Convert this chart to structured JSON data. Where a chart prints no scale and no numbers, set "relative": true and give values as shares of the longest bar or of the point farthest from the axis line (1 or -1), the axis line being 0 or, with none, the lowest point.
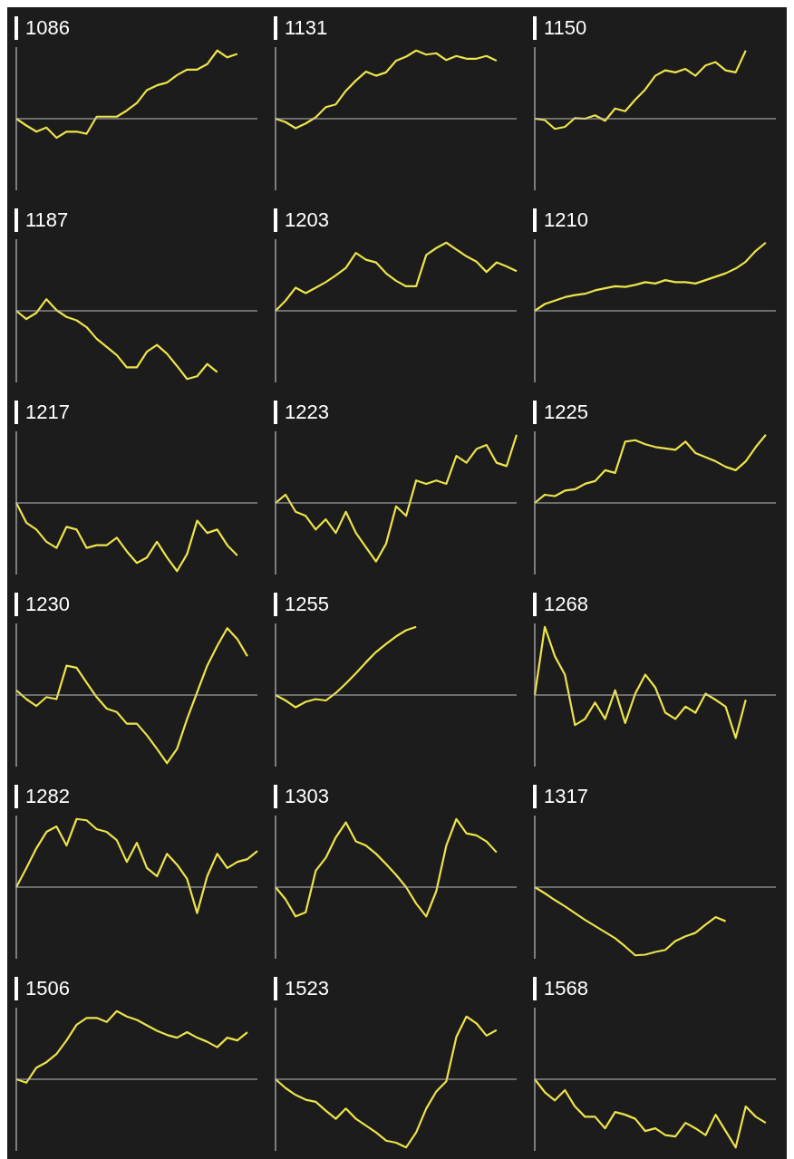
{
  "chart_data": [
    {
      "type": "line",
      "title": "1086",
      "relative": true,
      "categories": [
        null,
        null,
        null,
        null,
        null,
        null,
        null,
        null,
        null,
        null,
        null,
        null,
        null,
        null,
        null,
        null,
        null,
        null,
        null,
        null,
        null,
        null,
        null,
        null,
        null
      ],
      "series": [
        {
          "color": "#ede34b",
          "values": [
            0,
            -0.1,
            -0.19,
            -0.13,
            -0.28,
            -0.19,
            -0.19,
            -0.22,
            0.03,
            0.03,
            0.03,
            0.12,
            0.23,
            0.42,
            0.49,
            0.53,
            0.64,
            0.72,
            0.72,
            0.8,
            1,
            0.9,
            0.95,
            null,
            null
          ]
        }
      ]
    },
    {
      "type": "line",
      "title": "1131",
      "relative": true,
      "categories": [
        null,
        null,
        null,
        null,
        null,
        null,
        null,
        null,
        null,
        null,
        null,
        null,
        null,
        null,
        null,
        null,
        null,
        null,
        null,
        null,
        null,
        null,
        null,
        null,
        null
      ],
      "series": [
        {
          "color": "#ede34b",
          "values": [
            0,
            -0.05,
            -0.14,
            -0.07,
            0.02,
            0.17,
            0.21,
            0.41,
            0.56,
            0.69,
            0.63,
            0.68,
            0.85,
            0.91,
            1,
            0.94,
            0.96,
            0.86,
            0.92,
            0.88,
            0.88,
            0.92,
            0.85,
            null,
            null
          ]
        }
      ]
    },
    {
      "type": "line",
      "title": "1150",
      "relative": true,
      "categories": [
        null,
        null,
        null,
        null,
        null,
        null,
        null,
        null,
        null,
        null,
        null,
        null,
        null,
        null,
        null,
        null,
        null,
        null,
        null,
        null,
        null,
        null,
        null,
        null,
        null
      ],
      "series": [
        {
          "color": "#ede34b",
          "values": [
            0,
            -0.02,
            -0.15,
            -0.12,
            0.01,
            0,
            0.05,
            -0.03,
            0.15,
            0.11,
            0.28,
            0.43,
            0.63,
            0.71,
            0.68,
            0.73,
            0.63,
            0.78,
            0.83,
            0.71,
            0.68,
            1,
            null,
            null,
            null
          ]
        }
      ]
    },
    {
      "type": "line",
      "title": "1187",
      "relative": true,
      "categories": [
        null,
        null,
        null,
        null,
        null,
        null,
        null,
        null,
        null,
        null,
        null,
        null,
        null,
        null,
        null,
        null,
        null,
        null,
        null,
        null,
        null,
        null,
        null,
        null,
        null
      ],
      "series": [
        {
          "color": "#ede34b",
          "values": [
            0,
            -0.12,
            -0.03,
            0.17,
            0.01,
            -0.09,
            -0.14,
            -0.24,
            -0.41,
            -0.53,
            -0.65,
            -0.83,
            -0.83,
            -0.6,
            -0.5,
            -0.63,
            -0.81,
            -1,
            -0.96,
            -0.78,
            -0.9,
            null,
            null,
            null,
            null
          ]
        }
      ]
    },
    {
      "type": "line",
      "title": "1203",
      "relative": true,
      "categories": [
        null,
        null,
        null,
        null,
        null,
        null,
        null,
        null,
        null,
        null,
        null,
        null,
        null,
        null,
        null,
        null,
        null,
        null,
        null,
        null,
        null,
        null,
        null,
        null,
        null
      ],
      "series": [
        {
          "color": "#ede34b",
          "values": [
            0,
            0.15,
            0.34,
            0.26,
            0.34,
            0.42,
            0.52,
            0.63,
            0.85,
            0.75,
            0.71,
            0.55,
            0.44,
            0.36,
            0.36,
            0.82,
            0.92,
            1,
            0.9,
            0.8,
            0.72,
            0.57,
            0.71,
            0.65,
            0.58
          ]
        }
      ]
    },
    {
      "type": "line",
      "title": "1210",
      "relative": true,
      "categories": [
        null,
        null,
        null,
        null,
        null,
        null,
        null,
        null,
        null,
        null,
        null,
        null,
        null,
        null,
        null,
        null,
        null,
        null,
        null,
        null,
        null,
        null,
        null,
        null,
        null
      ],
      "series": [
        {
          "color": "#ede34b",
          "values": [
            0,
            0.1,
            0.15,
            0.2,
            0.23,
            0.25,
            0.3,
            0.33,
            0.36,
            0.35,
            0.38,
            0.42,
            0.4,
            0.45,
            0.42,
            0.42,
            0.4,
            0.45,
            0.5,
            0.55,
            0.62,
            0.72,
            0.88,
            1,
            null
          ]
        }
      ]
    },
    {
      "type": "line",
      "title": "1217",
      "relative": true,
      "categories": [
        null,
        null,
        null,
        null,
        null,
        null,
        null,
        null,
        null,
        null,
        null,
        null,
        null,
        null,
        null,
        null,
        null,
        null,
        null,
        null,
        null,
        null,
        null,
        null,
        null
      ],
      "series": [
        {
          "color": "#ede34b",
          "values": [
            0,
            -0.29,
            -0.39,
            -0.57,
            -0.66,
            -0.35,
            -0.39,
            -0.66,
            -0.62,
            -0.62,
            -0.51,
            -0.71,
            -0.88,
            -0.8,
            -0.57,
            -0.8,
            -1,
            -0.75,
            -0.26,
            -0.44,
            -0.39,
            -0.62,
            -0.77,
            null,
            null
          ]
        }
      ]
    },
    {
      "type": "line",
      "title": "1223",
      "relative": true,
      "categories": [
        null,
        null,
        null,
        null,
        null,
        null,
        null,
        null,
        null,
        null,
        null,
        null,
        null,
        null,
        null,
        null,
        null,
        null,
        null,
        null,
        null,
        null,
        null,
        null,
        null
      ],
      "series": [
        {
          "color": "#ede34b",
          "values": [
            0,
            0.12,
            -0.13,
            -0.19,
            -0.39,
            -0.24,
            -0.44,
            -0.13,
            -0.44,
            -0.65,
            -0.86,
            -0.6,
            -0.05,
            -0.19,
            0.33,
            0.28,
            0.33,
            0.28,
            0.69,
            0.59,
            0.79,
            0.85,
            0.59,
            0.54,
            1
          ]
        }
      ]
    },
    {
      "type": "line",
      "title": "1225",
      "relative": true,
      "categories": [
        null,
        null,
        null,
        null,
        null,
        null,
        null,
        null,
        null,
        null,
        null,
        null,
        null,
        null,
        null,
        null,
        null,
        null,
        null,
        null,
        null,
        null,
        null,
        null,
        null
      ],
      "series": [
        {
          "color": "#ede34b",
          "values": [
            0,
            0.12,
            0.1,
            0.18,
            0.2,
            0.28,
            0.32,
            0.48,
            0.44,
            0.9,
            0.92,
            0.86,
            0.82,
            0.8,
            0.78,
            0.9,
            0.73,
            0.67,
            0.61,
            0.53,
            0.48,
            0.61,
            0.82,
            1,
            null
          ]
        }
      ]
    },
    {
      "type": "line",
      "title": "1230",
      "relative": true,
      "categories": [
        null,
        null,
        null,
        null,
        null,
        null,
        null,
        null,
        null,
        null,
        null,
        null,
        null,
        null,
        null,
        null,
        null,
        null,
        null,
        null,
        null,
        null,
        null,
        null,
        null
      ],
      "series": [
        {
          "color": "#ede34b",
          "values": [
            0.07,
            -0.06,
            -0.16,
            -0.03,
            -0.06,
            0.43,
            0.4,
            0.18,
            -0.03,
            -0.2,
            -0.25,
            -0.42,
            -0.42,
            -0.59,
            -0.79,
            -1,
            -0.79,
            -0.35,
            0.04,
            0.43,
            0.72,
            0.98,
            0.82,
            0.57,
            null
          ]
        }
      ]
    },
    {
      "type": "line",
      "title": "1255",
      "relative": true,
      "categories": [
        null,
        null,
        null,
        null,
        null,
        null,
        null,
        null,
        null,
        null,
        null,
        null,
        null,
        null,
        null,
        null,
        null,
        null,
        null,
        null,
        null,
        null,
        null,
        null,
        null
      ],
      "series": [
        {
          "color": "#ede34b",
          "values": [
            0,
            -0.08,
            -0.18,
            -0.1,
            -0.06,
            -0.08,
            0.03,
            0.17,
            0.32,
            0.48,
            0.63,
            0.75,
            0.86,
            0.95,
            1,
            null,
            null,
            null,
            null,
            null,
            null,
            null,
            null,
            null,
            null
          ]
        }
      ]
    },
    {
      "type": "line",
      "title": "1268",
      "relative": true,
      "categories": [
        null,
        null,
        null,
        null,
        null,
        null,
        null,
        null,
        null,
        null,
        null,
        null,
        null,
        null,
        null,
        null,
        null,
        null,
        null,
        null,
        null,
        null,
        null,
        null,
        null
      ],
      "series": [
        {
          "color": "#ede34b",
          "values": [
            0,
            1,
            0.57,
            0.3,
            -0.44,
            -0.35,
            -0.11,
            -0.35,
            0.07,
            -0.41,
            0.02,
            0.3,
            0.11,
            -0.26,
            -0.35,
            -0.17,
            -0.26,
            0.02,
            -0.07,
            -0.17,
            -0.63,
            -0.07,
            null,
            null,
            null
          ]
        }
      ]
    },
    {
      "type": "line",
      "title": "1282",
      "relative": true,
      "categories": [
        null,
        null,
        null,
        null,
        null,
        null,
        null,
        null,
        null,
        null,
        null,
        null,
        null,
        null,
        null,
        null,
        null,
        null,
        null,
        null,
        null,
        null,
        null,
        null,
        null
      ],
      "series": [
        {
          "color": "#ede34b",
          "values": [
            0,
            0.28,
            0.57,
            0.81,
            0.89,
            0.61,
            1,
            0.98,
            0.85,
            0.81,
            0.69,
            0.37,
            0.65,
            0.28,
            0.16,
            0.49,
            0.33,
            0.12,
            -0.38,
            0.16,
            0.49,
            0.28,
            0.37,
            0.41,
            0.53
          ]
        }
      ]
    },
    {
      "type": "line",
      "title": "1303",
      "relative": true,
      "categories": [
        null,
        null,
        null,
        null,
        null,
        null,
        null,
        null,
        null,
        null,
        null,
        null,
        null,
        null,
        null,
        null,
        null,
        null,
        null,
        null,
        null,
        null,
        null,
        null,
        null
      ],
      "series": [
        {
          "color": "#ede34b",
          "values": [
            0,
            -0.18,
            -0.43,
            -0.37,
            0.24,
            0.43,
            0.73,
            0.95,
            0.67,
            0.61,
            0.49,
            0.34,
            0.18,
            0,
            -0.24,
            -0.43,
            -0.06,
            0.61,
            1,
            0.79,
            0.76,
            0.67,
            0.51,
            null,
            null
          ]
        }
      ]
    },
    {
      "type": "line",
      "title": "1317",
      "relative": true,
      "categories": [
        null,
        null,
        null,
        null,
        null,
        null,
        null,
        null,
        null,
        null,
        null,
        null,
        null,
        null,
        null,
        null,
        null,
        null,
        null,
        null,
        null,
        null,
        null,
        null,
        null
      ],
      "series": [
        {
          "color": "#ede34b",
          "values": [
            0,
            -0.09,
            -0.19,
            -0.28,
            -0.38,
            -0.48,
            -0.57,
            -0.66,
            -0.75,
            -0.87,
            -1,
            -0.99,
            -0.95,
            -0.92,
            -0.79,
            -0.72,
            -0.67,
            -0.55,
            -0.44,
            -0.5,
            null,
            null,
            null,
            null,
            null
          ]
        }
      ]
    },
    {
      "type": "line",
      "title": "1506",
      "relative": true,
      "categories": [
        null,
        null,
        null,
        null,
        null,
        null,
        null,
        null,
        null,
        null,
        null,
        null,
        null,
        null,
        null,
        null,
        null,
        null,
        null,
        null,
        null,
        null,
        null,
        null,
        null
      ],
      "series": [
        {
          "color": "#ede34b",
          "values": [
            0,
            -0.05,
            0.17,
            0.25,
            0.37,
            0.57,
            0.8,
            0.9,
            0.9,
            0.84,
            1,
            0.92,
            0.87,
            0.79,
            0.71,
            0.65,
            0.61,
            0.69,
            0.61,
            0.55,
            0.47,
            0.61,
            0.57,
            0.69,
            null
          ]
        }
      ]
    },
    {
      "type": "line",
      "title": "1523",
      "relative": true,
      "categories": [
        null,
        null,
        null,
        null,
        null,
        null,
        null,
        null,
        null,
        null,
        null,
        null,
        null,
        null,
        null,
        null,
        null,
        null,
        null,
        null,
        null,
        null,
        null,
        null,
        null
      ],
      "series": [
        {
          "color": "#ede34b",
          "values": [
            0,
            -0.13,
            -0.23,
            -0.3,
            -0.33,
            -0.46,
            -0.58,
            -0.43,
            -0.58,
            -0.68,
            -0.78,
            -0.9,
            -0.93,
            -1,
            -0.78,
            -0.43,
            -0.18,
            -0.03,
            0.62,
            0.92,
            0.82,
            0.64,
            0.72,
            null,
            null
          ]
        }
      ]
    },
    {
      "type": "line",
      "title": "1568",
      "relative": true,
      "categories": [
        null,
        null,
        null,
        null,
        null,
        null,
        null,
        null,
        null,
        null,
        null,
        null,
        null,
        null,
        null,
        null,
        null,
        null,
        null,
        null,
        null,
        null,
        null,
        null,
        null
      ],
      "series": [
        {
          "color": "#ede34b",
          "values": [
            0,
            -0.19,
            -0.31,
            -0.16,
            -0.4,
            -0.55,
            -0.55,
            -0.72,
            -0.48,
            -0.52,
            -0.58,
            -0.76,
            -0.72,
            -0.82,
            -0.84,
            -0.64,
            -0.72,
            -0.82,
            -0.52,
            -0.76,
            -1,
            -0.4,
            -0.55,
            -0.64,
            null
          ]
        }
      ]
    }
  ]
}
